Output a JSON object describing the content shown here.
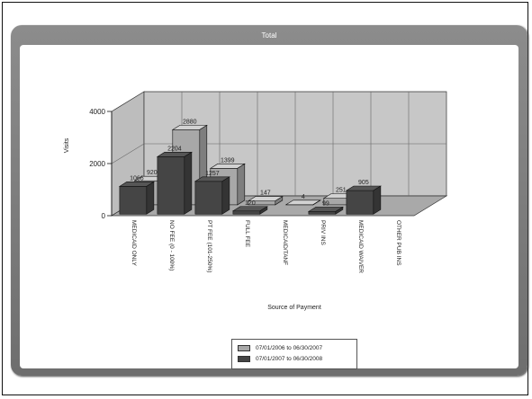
{
  "window": {
    "title": "Total"
  },
  "chart_data": {
    "type": "bar",
    "title": "Total",
    "xlabel": "Source of Payment",
    "ylabel": "Visits",
    "ylim": [
      0,
      4000
    ],
    "yticks": [
      "0",
      "2000",
      "4000"
    ],
    "categories": [
      "MEDICAID ONLY",
      "NO FEE (0 - 100%)",
      "PT FEE (101-250%)",
      "FULL FEE",
      "MEDICAID/TANF",
      "PRIV INS",
      "MEDICAID WAIVER",
      "OTHER PUB INS"
    ],
    "series": [
      {
        "name": "07/01/2006 to 06/30/2007",
        "color": "#a8a8a8",
        "values": [
          920,
          2880,
          1399,
          147,
          4,
          251,
          null,
          null
        ],
        "labels": [
          "920",
          "2880",
          "1399",
          "147",
          "4",
          "251",
          "",
          ""
        ]
      },
      {
        "name": "07/01/2007 to 06/30/2008",
        "color": "#454545",
        "values": [
          1066,
          2204,
          1257,
          120,
          null,
          99,
          905,
          null
        ],
        "labels": [
          "1066",
          "2204",
          "1257",
          "120",
          "",
          "99",
          "905",
          ""
        ]
      }
    ],
    "legend_position": "bottom",
    "grid": true
  }
}
